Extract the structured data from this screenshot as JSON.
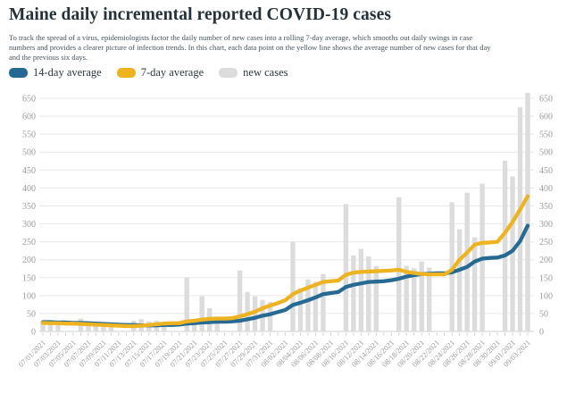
{
  "page": {
    "title": "Maine daily incremental reported COVID-19 cases",
    "description": "To track the spread of a virus, epidemiologists factor the daily number of new cases into a rolling 7-day average, which smooths out daily swings in case numbers and provides a clearer picture of infection trends. In this chart, each data point on the yellow line shows the average number of new cases for that day and the previous six days."
  },
  "colors": {
    "avg14": "#266a93",
    "avg7": "#eeb320",
    "bars": "#dcdcdc",
    "grid": "#e8e8e8",
    "axis_line": "#d0d0d0",
    "tick_mark": "#c9c9c9",
    "tick_text": "#9a9a9a",
    "title_text": "#253138",
    "body_text": "#47545c"
  },
  "chart_data": {
    "type": "bar+line",
    "title": "Maine daily incremental reported COVID-19 cases",
    "xlabel": "",
    "ylabel": "",
    "ylim": [
      0,
      650
    ],
    "y_ticks": [
      0,
      50,
      100,
      150,
      200,
      250,
      300,
      350,
      400,
      450,
      500,
      550,
      600,
      650
    ],
    "grid": true,
    "legend_position": "top",
    "x_label_every": 2,
    "x": [
      "07/01/2021",
      "07/02/2021",
      "07/03/2021",
      "07/04/2021",
      "07/05/2021",
      "07/06/2021",
      "07/07/2021",
      "07/08/2021",
      "07/09/2021",
      "07/10/2021",
      "07/11/2021",
      "07/12/2021",
      "07/13/2021",
      "07/14/2021",
      "07/15/2021",
      "07/16/2021",
      "07/17/2021",
      "07/18/2021",
      "07/19/2021",
      "07/20/2021",
      "07/21/2021",
      "07/22/2021",
      "07/23/2021",
      "07/24/2021",
      "07/25/2021",
      "07/26/2021",
      "07/27/2021",
      "07/28/2021",
      "07/29/2021",
      "07/30/2021",
      "07/31/2021",
      "08/01/2021",
      "08/02/2021",
      "08/03/2021",
      "08/04/2021",
      "08/05/2021",
      "08/06/2021",
      "08/07/2021",
      "08/08/2021",
      "08/09/2021",
      "08/10/2021",
      "08/11/2021",
      "08/12/2021",
      "08/13/2021",
      "08/14/2021",
      "08/15/2021",
      "08/16/2021",
      "08/17/2021",
      "08/18/2021",
      "08/19/2021",
      "08/20/2021",
      "08/21/2021",
      "08/22/2021",
      "08/23/2021",
      "08/24/2021",
      "08/25/2021",
      "08/26/2021",
      "08/27/2021",
      "08/28/2021",
      "08/29/2021",
      "08/30/2021",
      "08/31/2021",
      "09/01/2021",
      "09/02/2021",
      "09/03/2021"
    ],
    "series": [
      {
        "name": "14-day average",
        "type": "line",
        "color_key": "avg14",
        "values": [
          26,
          26,
          25,
          25,
          24,
          24,
          23,
          22,
          21,
          20,
          19,
          18,
          18,
          17,
          17,
          17,
          18,
          18,
          19,
          22,
          23,
          25,
          26,
          27,
          27,
          28,
          30,
          34,
          38,
          44,
          48,
          54,
          60,
          74,
          80,
          87,
          95,
          104,
          107,
          110,
          124,
          130,
          134,
          138,
          139,
          140,
          143,
          147,
          153,
          157,
          160,
          161,
          162,
          162,
          165,
          172,
          180,
          195,
          203,
          205,
          206,
          212,
          225,
          252,
          295
        ]
      },
      {
        "name": "7-day average",
        "type": "line",
        "color_key": "avg7",
        "values": [
          24,
          23,
          23,
          22,
          22,
          21,
          20,
          19,
          18,
          17,
          16,
          15,
          15,
          16,
          18,
          20,
          22,
          23,
          23,
          28,
          30,
          33,
          35,
          36,
          36,
          37,
          42,
          48,
          55,
          65,
          72,
          79,
          87,
          104,
          114,
          122,
          130,
          138,
          140,
          142,
          158,
          164,
          166,
          167,
          168,
          169,
          170,
          172,
          166,
          163,
          160,
          159,
          159,
          159,
          172,
          200,
          220,
          242,
          247,
          248,
          250,
          275,
          305,
          340,
          377
        ]
      },
      {
        "name": "new cases",
        "type": "bar",
        "color_key": "bars",
        "values": [
          28,
          24,
          26,
          0,
          0,
          36,
          28,
          24,
          26,
          20,
          0,
          0,
          30,
          34,
          28,
          30,
          26,
          0,
          0,
          150,
          32,
          98,
          65,
          40,
          0,
          0,
          170,
          110,
          98,
          88,
          82,
          0,
          0,
          250,
          120,
          145,
          138,
          160,
          0,
          0,
          355,
          212,
          230,
          209,
          182,
          0,
          0,
          374,
          183,
          176,
          195,
          178,
          0,
          0,
          360,
          285,
          387,
          262,
          412,
          0,
          0,
          476,
          432,
          625,
          665
        ]
      }
    ]
  }
}
